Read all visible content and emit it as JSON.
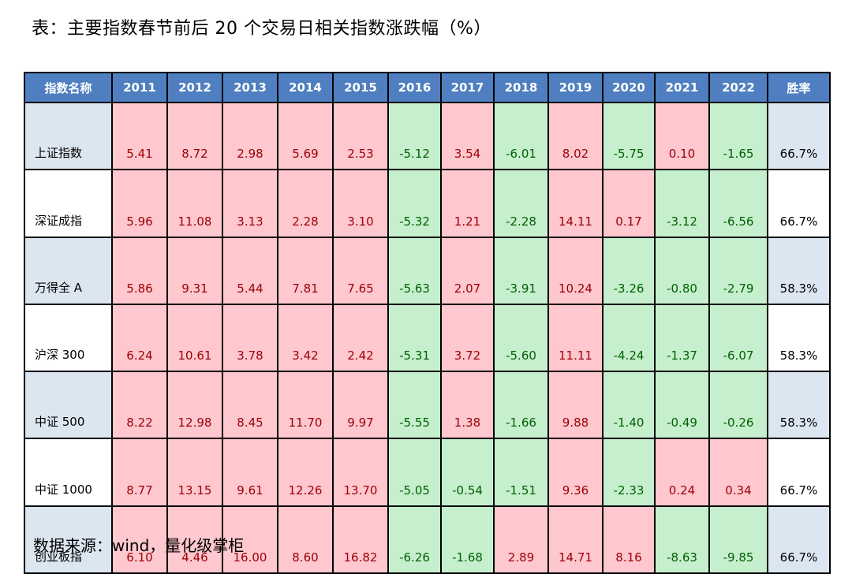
{
  "title": "表：主要指数春节前后 20 个交易日相关指数涨跌幅（%）",
  "source": "数据来源：wind，量化级掌柜",
  "colors": {
    "header_bg": "#4f7fc0",
    "positive_bg": "#ffc7ce",
    "positive_text": "#9c0006",
    "negative_bg": "#c6efce",
    "negative_text": "#006100",
    "name_bg_alt": "#dce6f1"
  },
  "headers": [
    "指数名称",
    "2011",
    "2012",
    "2013",
    "2014",
    "2015",
    "2016",
    "2017",
    "2018",
    "2019",
    "2020",
    "2021",
    "2022",
    "胜率"
  ],
  "rows": [
    {
      "name": "上证指数",
      "values": [
        "5.41",
        "8.72",
        "2.98",
        "5.69",
        "2.53",
        "-5.12",
        "3.54",
        "-6.01",
        "8.02",
        "-5.75",
        "0.10",
        "-1.65"
      ],
      "win_rate": "66.7%"
    },
    {
      "name": "深证成指",
      "values": [
        "5.96",
        "11.08",
        "3.13",
        "2.28",
        "3.10",
        "-5.32",
        "1.21",
        "-2.28",
        "14.11",
        "0.17",
        "-3.12",
        "-6.56"
      ],
      "win_rate": "66.7%"
    },
    {
      "name": "万得全 A",
      "values": [
        "5.86",
        "9.31",
        "5.44",
        "7.81",
        "7.65",
        "-5.63",
        "2.07",
        "-3.91",
        "10.24",
        "-3.26",
        "-0.80",
        "-2.79"
      ],
      "win_rate": "58.3%"
    },
    {
      "name": "沪深 300",
      "values": [
        "6.24",
        "10.61",
        "3.78",
        "3.42",
        "2.42",
        "-5.31",
        "3.72",
        "-5.60",
        "11.11",
        "-4.24",
        "-1.37",
        "-6.07"
      ],
      "win_rate": "58.3%"
    },
    {
      "name": "中证 500",
      "values": [
        "8.22",
        "12.98",
        "8.45",
        "11.70",
        "9.97",
        "-5.55",
        "1.38",
        "-1.66",
        "9.88",
        "-1.40",
        "-0.49",
        "-0.26"
      ],
      "win_rate": "58.3%"
    },
    {
      "name": "中证 1000",
      "values": [
        "8.77",
        "13.15",
        "9.61",
        "12.26",
        "13.70",
        "-5.05",
        "-0.54",
        "-1.51",
        "9.36",
        "-2.33",
        "0.24",
        "0.34"
      ],
      "win_rate": "66.7%"
    },
    {
      "name": "创业板指",
      "values": [
        "6.10",
        "4.46",
        "16.00",
        "8.60",
        "16.82",
        "-6.26",
        "-1.68",
        "2.89",
        "14.71",
        "8.16",
        "-8.63",
        "-9.85"
      ],
      "win_rate": "66.7%"
    }
  ]
}
